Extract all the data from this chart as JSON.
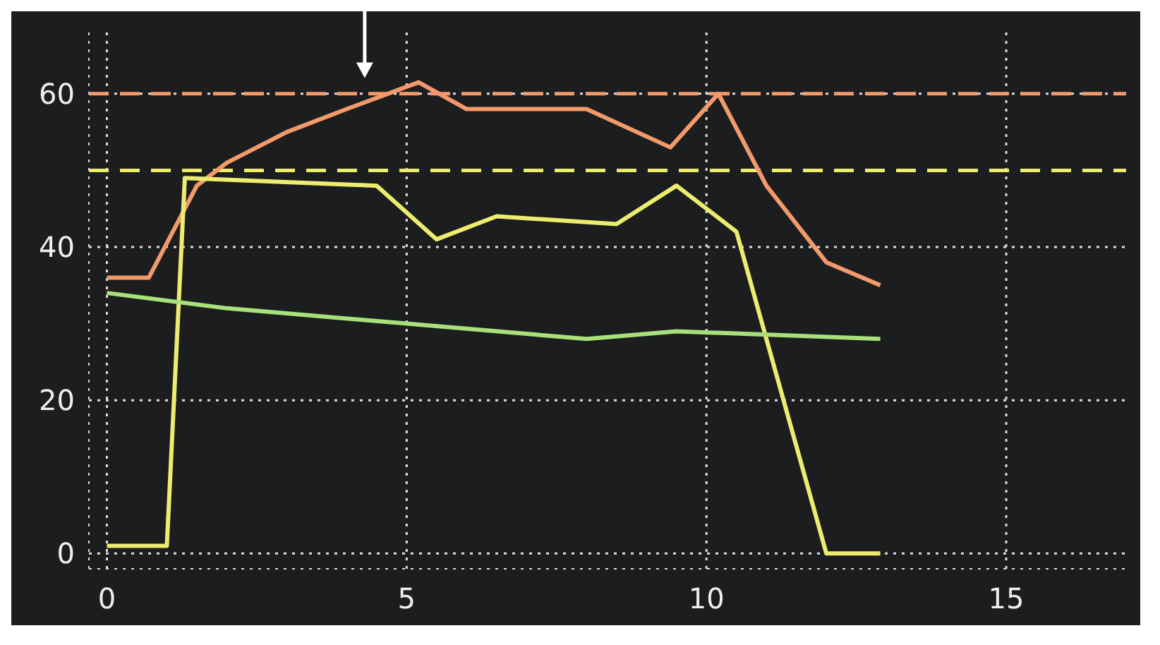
{
  "chart_data": {
    "type": "line",
    "xlim": [
      -0.3,
      17
    ],
    "ylim": [
      -2,
      68
    ],
    "xticks": [
      0,
      5,
      10,
      15
    ],
    "yticks": [
      0,
      20,
      40,
      60
    ],
    "grid": true,
    "line_style": "solid",
    "series": [
      {
        "color": "#f39a6b",
        "x": [
          0,
          0.7,
          1.5,
          2,
          3,
          4,
          5.2,
          6,
          7,
          8,
          9.4,
          10.2,
          11,
          12,
          12.9
        ],
        "values": [
          36,
          36,
          48,
          51,
          55,
          58,
          61.5,
          58,
          58,
          58,
          53,
          60,
          48,
          38,
          35
        ]
      },
      {
        "color": "#ecec6e",
        "x": [
          0,
          1,
          1.3,
          4.5,
          5.5,
          6.5,
          8.5,
          9.5,
          10.5,
          12,
          12.9
        ],
        "values": [
          1,
          1,
          49,
          48,
          41,
          44,
          43,
          48,
          42,
          0,
          0
        ]
      },
      {
        "color": "#a8e07a",
        "x": [
          0,
          2,
          5,
          8,
          9.5,
          12.9
        ],
        "values": [
          34,
          32,
          30,
          28,
          29,
          28
        ]
      }
    ],
    "ref_lines": [
      {
        "axis": "y",
        "value": 60,
        "color": "#f39a6b",
        "line_style": "dashed"
      },
      {
        "axis": "y",
        "value": 50,
        "color": "#ecec6e",
        "line_style": "dashed"
      }
    ]
  }
}
